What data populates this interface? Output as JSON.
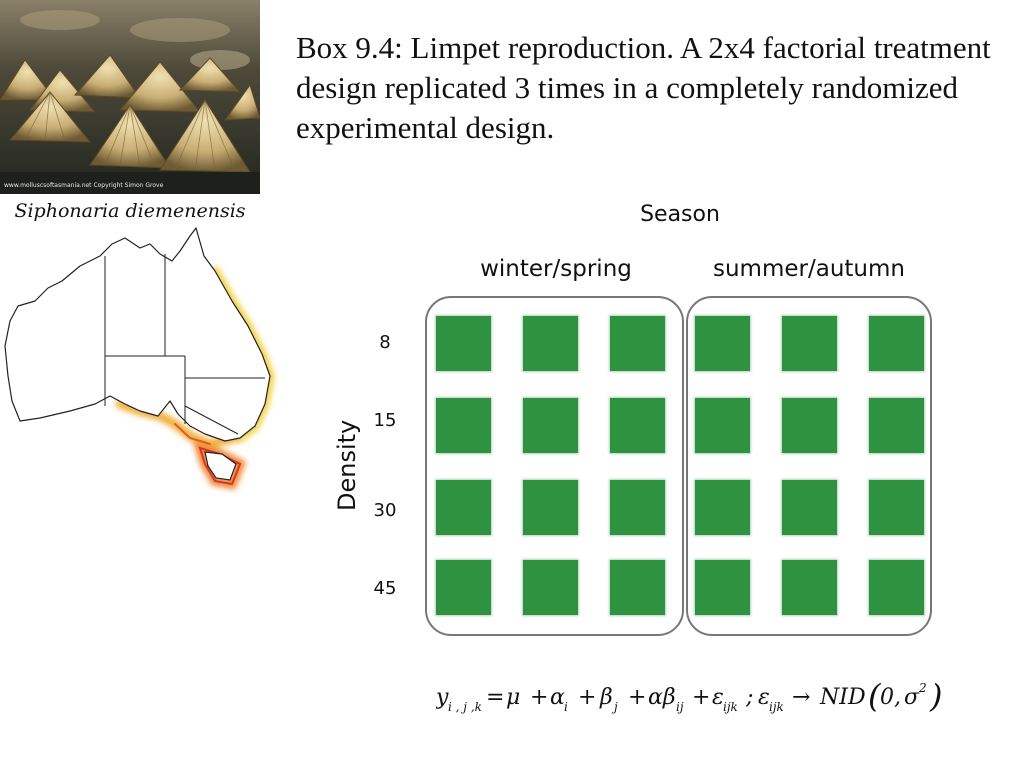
{
  "photo": {
    "credit": "www.molluscsoftasmania.net  Copyright Simon Grove"
  },
  "caption": "Siphonaria diemenensis",
  "title": "Box 9.4: Limpet reproduction.  A 2x4 factorial treatment design replicated 3 times in a completely randomized experimental design.",
  "design": {
    "season_title": "Season",
    "density_title": "Density",
    "groups": [
      {
        "label": "winter/spring",
        "replicates": 3
      },
      {
        "label": "summer/autumn",
        "replicates": 3
      }
    ],
    "rows": [
      "8",
      "15",
      "30",
      "45"
    ],
    "plot_color": "#2f9240",
    "box_color": "#777777"
  },
  "equation": {
    "lhs": "y",
    "lhs_sub": "i , j ,k",
    "mu": "μ",
    "alpha": "α",
    "alpha_sub": "i",
    "beta": "β",
    "beta_sub": "j",
    "alphabeta": "αβ",
    "alphabeta_sub": "ij",
    "eps": "ε",
    "eps_sub": "ijk",
    "dist": "NID",
    "zero": "0",
    "sigma": "σ",
    "sigma_sup": "2"
  }
}
